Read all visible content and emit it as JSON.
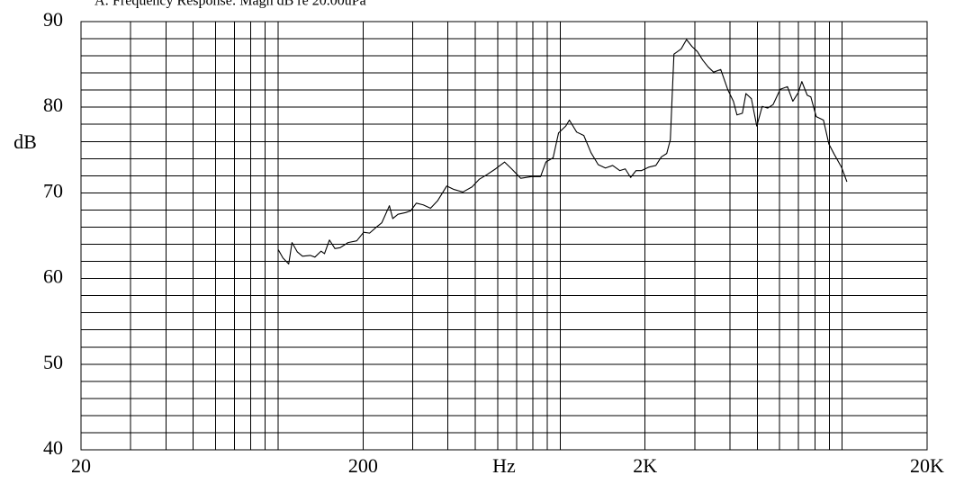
{
  "chart_data": {
    "type": "line",
    "title": "A: Frequency Response: Magn dB re 20.00uPa",
    "x_label": "Hz",
    "y_label": "dB",
    "xscale": "log",
    "grid": true,
    "color": "#000000",
    "xlim": [
      20,
      20000
    ],
    "ylim": [
      40,
      90
    ],
    "xticks": [
      20,
      200,
      {
        "value": 2000,
        "label": "2K"
      },
      {
        "value": 20000,
        "label": "20K"
      }
    ],
    "yticks": [
      40,
      50,
      60,
      70,
      80,
      90
    ],
    "x": [
      100,
      104,
      109,
      112,
      117,
      122,
      130,
      135,
      142,
      146,
      152,
      159,
      166,
      177,
      190,
      201,
      211,
      223,
      233,
      248,
      255,
      266,
      283,
      295,
      309,
      327,
      347,
      368,
      396,
      420,
      452,
      487,
      517,
      548,
      590,
      635,
      673,
      725,
      791,
      852,
      890,
      944,
      987,
      1047,
      1078,
      1144,
      1213,
      1286,
      1364,
      1447,
      1535,
      1628,
      1701,
      1778,
      1858,
      1942,
      2060,
      2184,
      2284,
      2387,
      2458,
      2532,
      2685,
      2806,
      2932,
      3065,
      3203,
      3348,
      3499,
      3710,
      3935,
      4113,
      4236,
      4426,
      4557,
      4764,
      4979,
      5204,
      5440,
      5685,
      6030,
      6395,
      6683,
      6984,
      7192,
      7518,
      7741,
      8091,
      8582,
      8970,
      9374,
      9944,
      10392
    ],
    "values": [
      63.4,
      62.4,
      61.7,
      64.2,
      63.1,
      62.6,
      62.7,
      62.5,
      63.2,
      62.9,
      64.5,
      63.5,
      63.6,
      64.2,
      64.4,
      65.4,
      65.3,
      66.0,
      66.5,
      68.5,
      67.0,
      67.5,
      67.7,
      67.9,
      68.8,
      68.6,
      68.2,
      69.1,
      70.8,
      70.4,
      70.1,
      70.7,
      71.6,
      72.1,
      72.8,
      73.6,
      72.8,
      71.7,
      71.9,
      71.9,
      73.6,
      74.1,
      77.0,
      77.8,
      78.5,
      77.1,
      76.7,
      74.7,
      73.3,
      72.9,
      73.2,
      72.6,
      72.8,
      71.8,
      72.6,
      72.6,
      73.0,
      73.2,
      74.2,
      74.6,
      76.2,
      86.2,
      86.8,
      87.9,
      87.1,
      86.5,
      85.5,
      84.7,
      84.1,
      84.4,
      82.0,
      80.7,
      79.1,
      79.3,
      81.6,
      81.0,
      77.8,
      80.1,
      79.9,
      80.3,
      82.1,
      82.4,
      80.7,
      81.7,
      83.0,
      81.4,
      81.2,
      78.9,
      78.5,
      75.7,
      74.5,
      73.0,
      71.3
    ]
  }
}
